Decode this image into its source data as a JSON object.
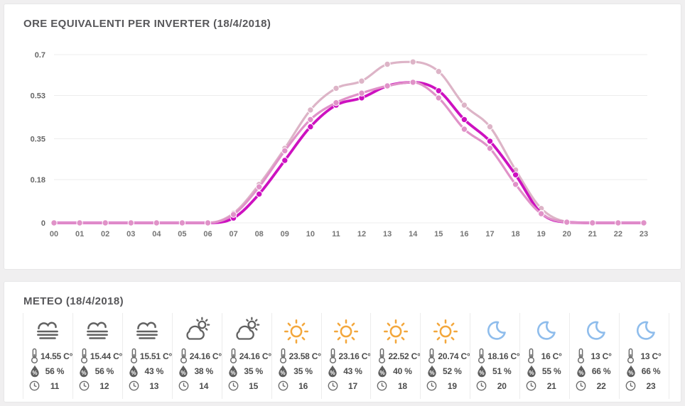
{
  "colors": {
    "page_background": "#f0eff0",
    "panel_background": "#ffffff",
    "title_text": "#57575a",
    "axis_text": "#757575",
    "gridline": "#ededed"
  },
  "inverter_panel": {
    "title": "ORE EQUIVALENTI PER INVERTER (18/4/2018)"
  },
  "chart_data": {
    "type": "line",
    "title": "ORE EQUIVALENTI PER INVERTER (18/4/2018)",
    "x": [
      "00",
      "01",
      "02",
      "03",
      "04",
      "05",
      "06",
      "07",
      "08",
      "09",
      "10",
      "11",
      "12",
      "13",
      "14",
      "15",
      "16",
      "17",
      "18",
      "19",
      "20",
      "21",
      "22",
      "23"
    ],
    "y_ticks": [
      "0.7",
      "0.53",
      "0.35",
      "0.18",
      "0"
    ],
    "ylim": [
      0,
      0.7
    ],
    "grid": "horizontal",
    "legend": "none",
    "series": [
      {
        "name": "inverter-light-pink",
        "color": "#ddb4c7",
        "values": [
          0,
          0,
          0,
          0,
          0,
          0,
          0,
          0.04,
          0.16,
          0.31,
          0.47,
          0.56,
          0.59,
          0.66,
          0.67,
          0.63,
          0.49,
          0.4,
          0.22,
          0.06,
          0.005,
          0,
          0,
          0
        ]
      },
      {
        "name": "inverter-magenta",
        "color": "#cd11c0",
        "values": [
          0,
          0,
          0,
          0,
          0,
          0,
          0,
          0.02,
          0.12,
          0.26,
          0.4,
          0.49,
          0.52,
          0.57,
          0.585,
          0.55,
          0.43,
          0.34,
          0.2,
          0.04,
          0.003,
          0,
          0,
          0
        ]
      },
      {
        "name": "inverter-medium-pink",
        "color": "#e092c8",
        "values": [
          0,
          0,
          0,
          0,
          0,
          0,
          0,
          0.035,
          0.15,
          0.3,
          0.43,
          0.5,
          0.54,
          0.57,
          0.585,
          0.52,
          0.39,
          0.31,
          0.16,
          0.038,
          0.003,
          0,
          0,
          0
        ]
      }
    ]
  },
  "meteo_panel": {
    "title": "METEO (18/4/2018)",
    "icon_colors": {
      "cloud": "#626262",
      "sun": "#f3a73c",
      "moon": "#8fbdec",
      "detail": "#6d6d6d"
    },
    "cards": [
      {
        "weather_icon": "fog",
        "temperature": "14.55 C°",
        "humidity": "56 %",
        "hour": "11"
      },
      {
        "weather_icon": "fog",
        "temperature": "15.44 C°",
        "humidity": "56 %",
        "hour": "12"
      },
      {
        "weather_icon": "fog",
        "temperature": "15.51 C°",
        "humidity": "43 %",
        "hour": "13"
      },
      {
        "weather_icon": "partly-cloudy",
        "temperature": "24.16 C°",
        "humidity": "38 %",
        "hour": "14"
      },
      {
        "weather_icon": "partly-cloudy",
        "temperature": "24.16 C°",
        "humidity": "35 %",
        "hour": "15"
      },
      {
        "weather_icon": "sun",
        "temperature": "23.58 C°",
        "humidity": "35 %",
        "hour": "16"
      },
      {
        "weather_icon": "sun",
        "temperature": "23.16 C°",
        "humidity": "43 %",
        "hour": "17"
      },
      {
        "weather_icon": "sun",
        "temperature": "22.52 C°",
        "humidity": "40 %",
        "hour": "18"
      },
      {
        "weather_icon": "sun",
        "temperature": "20.74 C°",
        "humidity": "52 %",
        "hour": "19"
      },
      {
        "weather_icon": "moon",
        "temperature": "18.16 C°",
        "humidity": "51 %",
        "hour": "20"
      },
      {
        "weather_icon": "moon",
        "temperature": "16 C°",
        "humidity": "55 %",
        "hour": "21"
      },
      {
        "weather_icon": "moon",
        "temperature": "13 C°",
        "humidity": "66 %",
        "hour": "22"
      },
      {
        "weather_icon": "moon",
        "temperature": "13 C°",
        "humidity": "66 %",
        "hour": "23"
      }
    ]
  }
}
